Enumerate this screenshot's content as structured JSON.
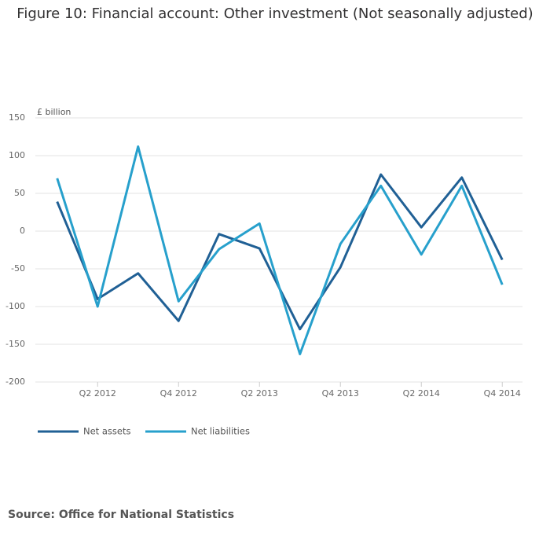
{
  "chart_data": {
    "type": "line",
    "title": "Figure 10: Financial account: Other investment (Not seasonally adjusted)",
    "y_label": "£ billion",
    "source": "Source: Office for National Statistics",
    "categories": [
      null,
      "Q2 2012",
      null,
      "Q4 2012",
      null,
      "Q2 2013",
      null,
      "Q4 2013",
      null,
      "Q2 2014",
      null,
      "Q4 2014"
    ],
    "series": [
      {
        "name": "Net assets",
        "color": "#206095",
        "values": [
          39,
          -90,
          -56,
          -119,
          -4,
          -23,
          -130,
          -48,
          75,
          5,
          71,
          -38
        ]
      },
      {
        "name": "Net liabilities",
        "color": "#27a0cc",
        "values": [
          70,
          -100,
          112,
          -93,
          -24,
          10,
          -163,
          -17,
          60,
          -31,
          60,
          -71
        ]
      }
    ],
    "ylim": [
      -200,
      150
    ],
    "yticks": [
      -200,
      -150,
      -100,
      -50,
      0,
      50,
      100,
      150
    ],
    "grid": true
  }
}
